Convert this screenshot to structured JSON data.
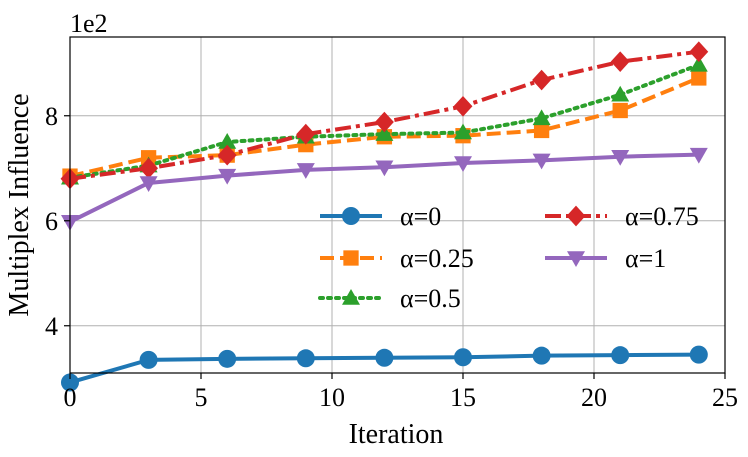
{
  "chart_data": {
    "type": "line",
    "title": "",
    "xlabel": "Iteration",
    "ylabel": "Multiplex Influence",
    "y_offset_label": "1e2",
    "xlim": [
      0,
      25
    ],
    "ylim": [
      3.1,
      9.5
    ],
    "x_ticks": [
      0,
      5,
      10,
      15,
      20,
      25
    ],
    "y_ticks": [
      4,
      6,
      8
    ],
    "grid": true,
    "legend_placement": "center-right",
    "x": [
      0,
      3,
      6,
      9,
      12,
      15,
      18,
      21,
      24
    ],
    "series": [
      {
        "name": "α=0",
        "color": "#1f77b4",
        "marker": "circle",
        "linestyle": "solid",
        "values": [
          2.92,
          3.35,
          3.37,
          3.38,
          3.39,
          3.4,
          3.43,
          3.44,
          3.45
        ]
      },
      {
        "name": "α=0.25",
        "color": "#ff7f0e",
        "marker": "square",
        "linestyle": "dashed",
        "values": [
          6.85,
          7.2,
          7.25,
          7.45,
          7.6,
          7.62,
          7.72,
          8.1,
          8.72
        ]
      },
      {
        "name": "α=0.5",
        "color": "#2ca02c",
        "marker": "triangle-up",
        "linestyle": "dotted",
        "values": [
          6.82,
          7.05,
          7.5,
          7.6,
          7.65,
          7.68,
          7.95,
          8.4,
          8.97
        ]
      },
      {
        "name": "α=0.75",
        "color": "#d62728",
        "marker": "diamond",
        "linestyle": "dashdot",
        "values": [
          6.8,
          7.0,
          7.25,
          7.65,
          7.88,
          8.18,
          8.68,
          9.03,
          9.22
        ]
      },
      {
        "name": "α=1",
        "color": "#9467bd",
        "marker": "triangle-down",
        "linestyle": "solid",
        "values": [
          5.98,
          6.72,
          6.86,
          6.97,
          7.02,
          7.1,
          7.15,
          7.22,
          7.26
        ]
      }
    ]
  }
}
